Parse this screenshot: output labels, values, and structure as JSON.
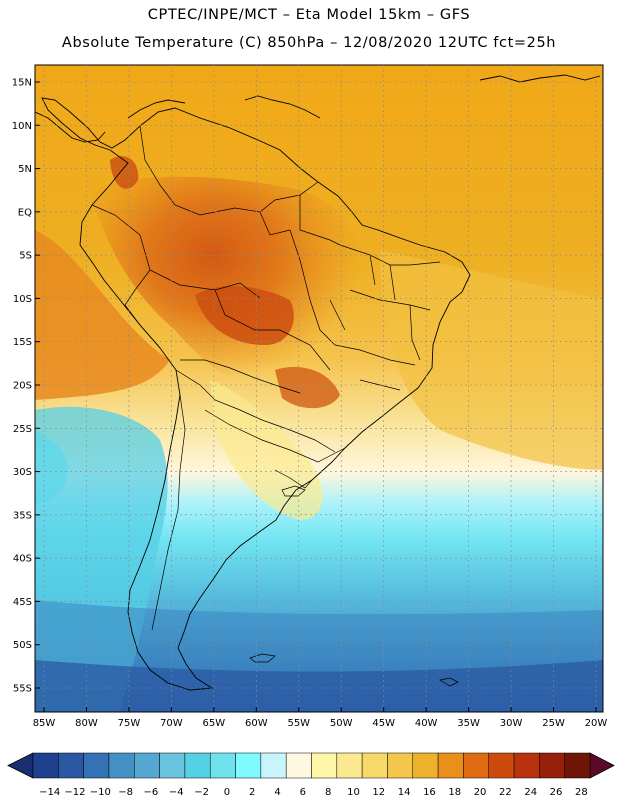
{
  "header": {
    "line1": "CPTEC/INPE/MCT –  Eta Model 15km – GFS",
    "line2": "Absolute Temperature (C) 850hPa – 12/08/2020 12UTC fct=25h"
  },
  "map": {
    "lat_labels": [
      "15N",
      "10N",
      "5N",
      "EQ",
      "5S",
      "10S",
      "15S",
      "20S",
      "25S",
      "30S",
      "35S",
      "40S",
      "45S",
      "50S",
      "55S"
    ],
    "lon_labels": [
      "85W",
      "80W",
      "75W",
      "70W",
      "65W",
      "60W",
      "55W",
      "50W",
      "45W",
      "40W",
      "35W",
      "30W",
      "25W",
      "20W"
    ],
    "lat_values": [
      15,
      10,
      5,
      0,
      -5,
      -10,
      -15,
      -20,
      -25,
      -30,
      -35,
      -40,
      -45,
      -50,
      -55
    ],
    "lon_values": [
      -85,
      -80,
      -75,
      -70,
      -65,
      -60,
      -55,
      -50,
      -45,
      -40,
      -35,
      -30,
      -25,
      -20
    ]
  },
  "colorbar": {
    "labels": [
      "-14",
      "-12",
      "-10",
      "-8",
      "-6",
      "-4",
      "-2",
      "0",
      "2",
      "4",
      "6",
      "8",
      "10",
      "12",
      "14",
      "16",
      "18",
      "20",
      "22",
      "24",
      "26",
      "28"
    ],
    "colors": [
      "#1f3f8f",
      "#2a58a3",
      "#3571b5",
      "#4590c5",
      "#56a8d2",
      "#6cc3df",
      "#55d1e6",
      "#6ee3ee",
      "#7ffbff",
      "#c8f4fb",
      "#fff8e0",
      "#fef6a8",
      "#fbe890",
      "#f8d86a",
      "#f3c74b",
      "#eeb12b",
      "#e98f1a",
      "#e06a12",
      "#cc4a0e",
      "#b8320b",
      "#962009",
      "#6e1506"
    ],
    "underflow_color": "#1a2f70",
    "overflow_color": "#5a0a28"
  },
  "colors": {
    "ocean_cold": "#1e4d9a",
    "land_outline": "#000000"
  }
}
